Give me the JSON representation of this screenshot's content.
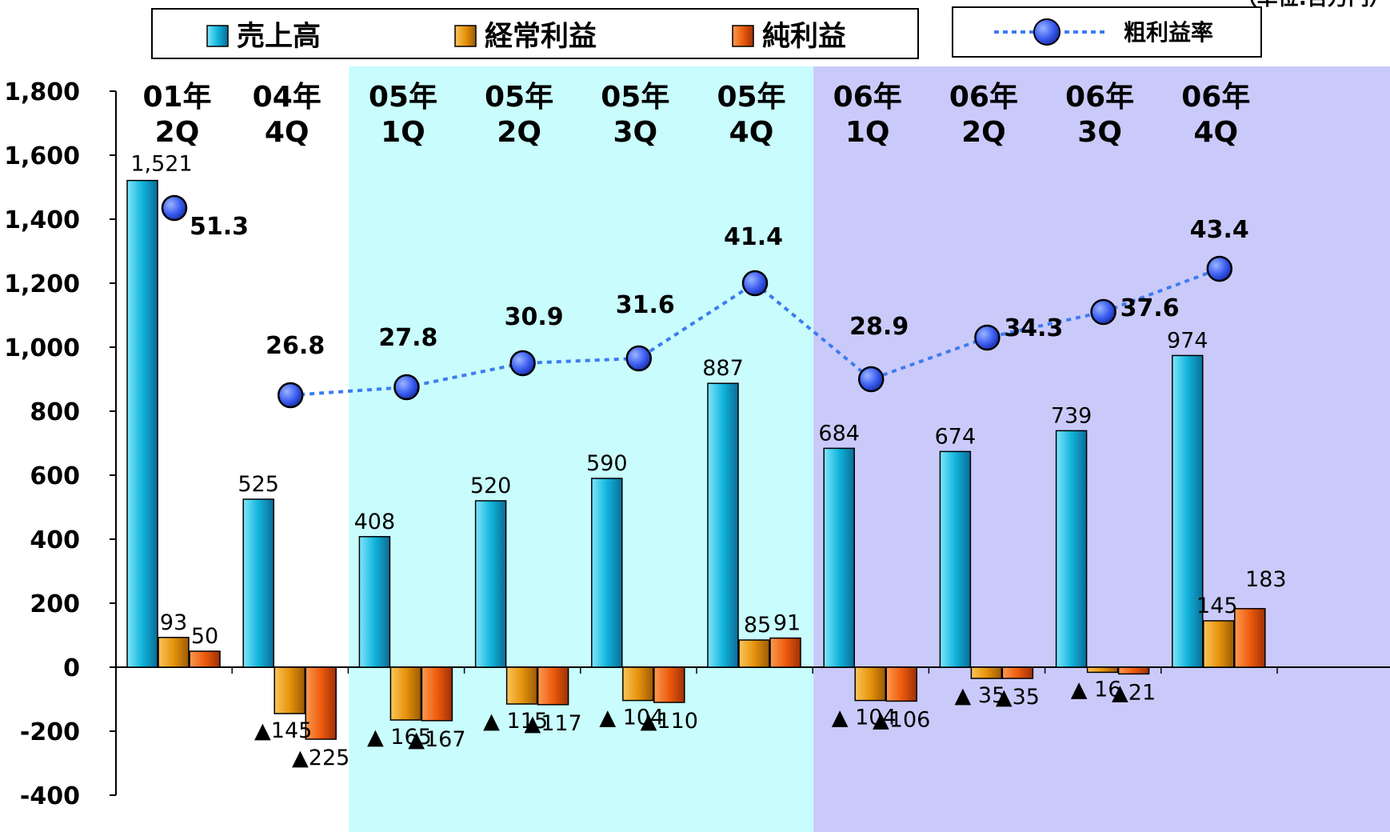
{
  "unit_label": "（単位:百万円）",
  "colors": {
    "sales": "#12b4dc",
    "ordinary": "#e6940c",
    "net": "#ee5c0c",
    "rate": "#3a5cf0",
    "rate_line": "#3d7cf0",
    "band_2005": "#c9fcfc",
    "band_2006": "#cacafa"
  },
  "legend": {
    "sales": "売上高",
    "ordinary": "経常利益",
    "net": "純利益",
    "rate": "粗利益率"
  },
  "chart_data": {
    "type": "bar",
    "categories": [
      [
        "01年",
        "2Q"
      ],
      [
        "04年",
        "4Q"
      ],
      [
        "05年",
        "1Q"
      ],
      [
        "05年",
        "2Q"
      ],
      [
        "05年",
        "3Q"
      ],
      [
        "05年",
        "4Q"
      ],
      [
        "06年",
        "1Q"
      ],
      [
        "06年",
        "2Q"
      ],
      [
        "06年",
        "3Q"
      ],
      [
        "06年",
        "4Q"
      ]
    ],
    "ylim": [
      -400,
      1800
    ],
    "yticks": [
      1800,
      1600,
      1400,
      1200,
      1000,
      800,
      600,
      400,
      200,
      0,
      -200,
      -400
    ],
    "ytick_labels": [
      "1,800",
      "1,600",
      "1,400",
      "1,200",
      "1,000",
      "800",
      "600",
      "400",
      "200",
      "0",
      "-200",
      "-400"
    ],
    "series": [
      {
        "name": "売上高",
        "key": "sales",
        "values": [
          1521,
          525,
          408,
          520,
          590,
          887,
          684,
          674,
          739,
          974
        ],
        "labels": [
          "1,521",
          "525",
          "408",
          "520",
          "590",
          "887",
          "684",
          "674",
          "739",
          "974"
        ]
      },
      {
        "name": "経常利益",
        "key": "ordinary",
        "values": [
          93,
          -145,
          -165,
          -115,
          -104,
          85,
          -104,
          -35,
          -16,
          145
        ],
        "labels": [
          "93",
          "▲145",
          "▲ 165",
          "▲ 115",
          "▲ 104",
          "85",
          "▲ 104",
          "▲ 35",
          "▲ 16",
          "145"
        ]
      },
      {
        "name": "純利益",
        "key": "net",
        "values": [
          50,
          -225,
          -167,
          -117,
          -110,
          91,
          -106,
          -35,
          -21,
          183
        ],
        "labels": [
          "50",
          "▲225",
          "▲167",
          "▲117",
          "▲110",
          "91",
          "▲106",
          "▲35",
          "▲21",
          "183"
        ]
      }
    ],
    "line_series": {
      "name": "粗利益率",
      "values": [
        51.3,
        26.8,
        27.8,
        30.9,
        31.6,
        41.4,
        28.9,
        34.3,
        37.6,
        43.4
      ],
      "labels": [
        "51.3",
        "26.8",
        "27.8",
        "30.9",
        "31.6",
        "41.4",
        "28.9",
        "34.3",
        "37.6",
        "43.4"
      ],
      "marker_levels": [
        1435,
        850,
        875,
        950,
        965,
        1200,
        900,
        1030,
        1110,
        1245
      ]
    },
    "shaded_periods": [
      "05年",
      "06年"
    ],
    "grid": false,
    "legend_position": "top"
  }
}
